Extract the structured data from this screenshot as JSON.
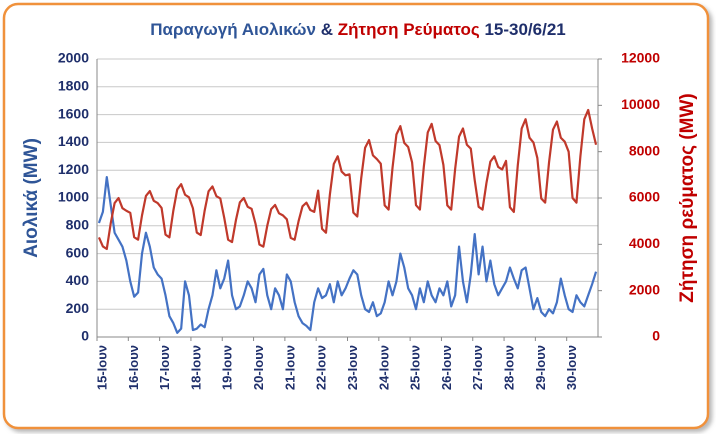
{
  "chart_data": {
    "type": "line",
    "title": [
      "Παραγωγή Αιολικών",
      "&",
      "Ζήτηση Ρεύματος",
      "15-30/6/21"
    ],
    "ylabel": "Αιολικά (MW)",
    "y2label": "Ζήτηση ρεύματος (MW)",
    "categories": [
      "15-Ιουν",
      null,
      null,
      null,
      null,
      null,
      null,
      null,
      "16-Ιουν",
      null,
      null,
      null,
      null,
      null,
      null,
      null,
      "17-Ιουν",
      null,
      null,
      null,
      null,
      null,
      null,
      null,
      "18-Ιουν",
      null,
      null,
      null,
      null,
      null,
      null,
      null,
      "19-Ιουν",
      null,
      null,
      null,
      null,
      null,
      null,
      null,
      "20-Ιουν",
      null,
      null,
      null,
      null,
      null,
      null,
      null,
      "21-Ιουν",
      null,
      null,
      null,
      null,
      null,
      null,
      null,
      "22-Ιουν",
      null,
      null,
      null,
      null,
      null,
      null,
      null,
      "23-Ιουν",
      null,
      null,
      null,
      null,
      null,
      null,
      null,
      "24-Ιουν",
      null,
      null,
      null,
      null,
      null,
      null,
      null,
      "25-Ιουν",
      null,
      null,
      null,
      null,
      null,
      null,
      null,
      "26-Ιουν",
      null,
      null,
      null,
      null,
      null,
      null,
      null,
      "27-Ιουν",
      null,
      null,
      null,
      null,
      null,
      null,
      null,
      "28-Ιουν",
      null,
      null,
      null,
      null,
      null,
      null,
      null,
      "29-Ιουν",
      null,
      null,
      null,
      null,
      null,
      null,
      null,
      "30-Ιουν",
      null,
      null,
      null,
      null,
      null,
      null,
      null
    ],
    "series": [
      {
        "name": "Αιολικά",
        "color": "#4472c4",
        "axis": "y",
        "values": [
          820,
          900,
          1150,
          950,
          750,
          700,
          650,
          550,
          400,
          290,
          320,
          600,
          750,
          650,
          500,
          450,
          420,
          300,
          150,
          100,
          30,
          60,
          400,
          300,
          50,
          60,
          90,
          70,
          200,
          300,
          480,
          350,
          420,
          550,
          300,
          200,
          220,
          300,
          400,
          350,
          250,
          450,
          490,
          300,
          200,
          350,
          300,
          200,
          450,
          400,
          250,
          150,
          100,
          80,
          50,
          250,
          350,
          280,
          300,
          380,
          250,
          400,
          300,
          350,
          420,
          480,
          450,
          300,
          200,
          180,
          250,
          150,
          170,
          250,
          400,
          300,
          400,
          600,
          500,
          350,
          300,
          200,
          350,
          250,
          400,
          300,
          250,
          350,
          300,
          400,
          220,
          300,
          650,
          400,
          250,
          450,
          740,
          450,
          650,
          400,
          550,
          380,
          300,
          350,
          400,
          500,
          420,
          350,
          480,
          500,
          350,
          200,
          280,
          180,
          150,
          200,
          170,
          250,
          420,
          300,
          200,
          180,
          300,
          250,
          220,
          300,
          380,
          470
        ]
      },
      {
        "name": "Ζήτηση",
        "color": "#c0392b",
        "axis": "y2",
        "values": [
          4300,
          3910,
          3800,
          4900,
          5780,
          6000,
          5560,
          5450,
          5360,
          4310,
          4200,
          5250,
          6090,
          6300,
          5880,
          5780,
          5570,
          4420,
          4300,
          5450,
          6370,
          6600,
          6140,
          6030,
          5560,
          4510,
          4400,
          5450,
          6290,
          6500,
          6080,
          5980,
          5150,
          4200,
          4100,
          5050,
          5810,
          6000,
          5620,
          5530,
          4890,
          3990,
          3900,
          4800,
          5520,
          5700,
          5340,
          5250,
          5080,
          4280,
          4200,
          5000,
          5640,
          5800,
          5480,
          5400,
          6320,
          4670,
          4500,
          6150,
          7470,
          7800,
          7140,
          6980,
          7020,
          5370,
          5200,
          6850,
          8170,
          8500,
          7840,
          7680,
          7480,
          5680,
          5500,
          7300,
          8740,
          9100,
          8380,
          8200,
          7540,
          5690,
          5500,
          7350,
          8830,
          9200,
          8460,
          8280,
          7430,
          5680,
          5500,
          7250,
          8650,
          9000,
          8300,
          8130,
          6770,
          5620,
          5500,
          6650,
          7570,
          7800,
          7340,
          7230,
          7600,
          5600,
          5400,
          7400,
          9000,
          9400,
          8600,
          8400,
          7730,
          5980,
          5800,
          7550,
          8950,
          9300,
          8600,
          8430,
          8000,
          6000,
          5800,
          7800,
          9400,
          9800,
          9000,
          8300
        ]
      }
    ],
    "ylim": [
      0,
      2000
    ],
    "yticks": [
      0,
      200,
      400,
      600,
      800,
      1000,
      1200,
      1400,
      1600,
      1800,
      2000
    ],
    "y2lim": [
      0,
      12000
    ],
    "y2ticks": [
      0,
      2000,
      4000,
      6000,
      8000,
      10000,
      12000
    ],
    "grid": true
  }
}
